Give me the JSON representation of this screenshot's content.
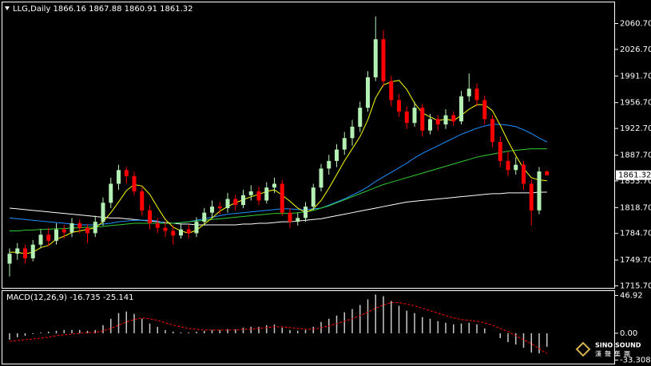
{
  "chart_data": [
    {
      "type": "candlestick",
      "title": "LLG,Daily  1866.16 1867.88 1860.91 1861.32",
      "up_color": "#b4f0b4",
      "down_color": "#ff0000",
      "open": [
        1745,
        1758,
        1765,
        1752,
        1770,
        1783,
        1775,
        1790,
        1786,
        1798,
        1792,
        1785,
        1800,
        1825,
        1850,
        1868,
        1860,
        1840,
        1815,
        1798,
        1792,
        1788,
        1782,
        1790,
        1785,
        1800,
        1812,
        1820,
        1818,
        1830,
        1822,
        1835,
        1840,
        1828,
        1845,
        1850,
        1812,
        1800,
        1805,
        1820,
        1845,
        1870,
        1880,
        1895,
        1910,
        1925,
        1950,
        1990,
        2040,
        1985,
        1960,
        1945,
        1930,
        1950,
        1920,
        1935,
        1928,
        1940,
        1932,
        1965,
        1975,
        1960,
        1935,
        1905,
        1880,
        1868,
        1875,
        1850,
        1815,
        1866.16
      ],
      "high": [
        1765,
        1772,
        1770,
        1776,
        1790,
        1792,
        1798,
        1796,
        1805,
        1803,
        1797,
        1808,
        1832,
        1858,
        1875,
        1872,
        1866,
        1845,
        1822,
        1805,
        1800,
        1795,
        1798,
        1796,
        1806,
        1818,
        1828,
        1826,
        1838,
        1835,
        1842,
        1848,
        1846,
        1852,
        1858,
        1855,
        1818,
        1812,
        1826,
        1850,
        1876,
        1888,
        1902,
        1918,
        1934,
        1958,
        1998,
        2070,
        2052,
        1992,
        1968,
        1952,
        1958,
        1955,
        1942,
        1940,
        1948,
        1945,
        1972,
        1995,
        1982,
        1966,
        1940,
        1912,
        1892,
        1885,
        1880,
        1856,
        1872,
        1867.88
      ],
      "low": [
        1728,
        1750,
        1745,
        1748,
        1765,
        1768,
        1770,
        1778,
        1780,
        1785,
        1772,
        1780,
        1795,
        1818,
        1842,
        1850,
        1835,
        1808,
        1790,
        1785,
        1780,
        1770,
        1778,
        1778,
        1780,
        1795,
        1805,
        1810,
        1812,
        1815,
        1818,
        1828,
        1822,
        1824,
        1838,
        1808,
        1792,
        1795,
        1800,
        1815,
        1840,
        1862,
        1872,
        1888,
        1900,
        1918,
        1945,
        1985,
        1978,
        1952,
        1938,
        1922,
        1925,
        1912,
        1915,
        1920,
        1922,
        1926,
        1928,
        1958,
        1952,
        1928,
        1898,
        1872,
        1860,
        1862,
        1842,
        1795,
        1810,
        1860.91
      ],
      "close": [
        1758,
        1765,
        1752,
        1770,
        1783,
        1775,
        1790,
        1786,
        1798,
        1792,
        1785,
        1800,
        1825,
        1850,
        1868,
        1860,
        1840,
        1815,
        1798,
        1792,
        1788,
        1782,
        1790,
        1785,
        1800,
        1812,
        1820,
        1818,
        1830,
        1822,
        1835,
        1840,
        1828,
        1845,
        1850,
        1812,
        1800,
        1805,
        1820,
        1845,
        1870,
        1880,
        1895,
        1910,
        1925,
        1950,
        1990,
        2040,
        1985,
        1960,
        1945,
        1930,
        1950,
        1920,
        1935,
        1928,
        1940,
        1932,
        1965,
        1975,
        1960,
        1935,
        1905,
        1880,
        1868,
        1875,
        1850,
        1815,
        1866.16,
        1861.32
      ],
      "lines": [
        {
          "color": "#ffffff",
          "values": [
            1818,
            1817,
            1816,
            1815,
            1814,
            1813,
            1812,
            1811,
            1810,
            1809,
            1808,
            1807,
            1806,
            1805,
            1805,
            1804,
            1803,
            1802,
            1801,
            1800,
            1799,
            1798,
            1797,
            1797,
            1796,
            1796,
            1796,
            1796,
            1796,
            1796,
            1797,
            1797,
            1798,
            1798,
            1799,
            1800,
            1800,
            1801,
            1802,
            1803,
            1804,
            1806,
            1808,
            1810,
            1812,
            1814,
            1816,
            1818,
            1820,
            1822,
            1824,
            1826,
            1827,
            1828,
            1829,
            1830,
            1831,
            1832,
            1833,
            1834,
            1835,
            1836,
            1837,
            1837,
            1838,
            1838,
            1838,
            1838,
            1839,
            1839
          ]
        },
        {
          "color": "#1e90ff",
          "values": [
            1805,
            1804,
            1803,
            1802,
            1801,
            1800,
            1799,
            1798,
            1797,
            1796,
            1796,
            1796,
            1797,
            1798,
            1800,
            1801,
            1802,
            1802,
            1802,
            1801,
            1798,
            1798,
            1799,
            1800,
            1802,
            1804,
            1806,
            1808,
            1810,
            1811,
            1812,
            1813,
            1814,
            1815,
            1816,
            1817,
            1817,
            1816,
            1816,
            1817,
            1818,
            1822,
            1826,
            1830,
            1835,
            1840,
            1846,
            1853,
            1859,
            1865,
            1871,
            1877,
            1884,
            1890,
            1895,
            1900,
            1905,
            1910,
            1915,
            1919,
            1923,
            1926,
            1928,
            1928,
            1927,
            1925,
            1921,
            1916,
            1910,
            1905
          ]
        },
        {
          "color": "#32cd32",
          "values": [
            1788,
            1788,
            1789,
            1789,
            1790,
            1790,
            1791,
            1791,
            1792,
            1792,
            1793,
            1793,
            1794,
            1795,
            1796,
            1797,
            1798,
            1798,
            1798,
            1798,
            1798,
            1798,
            1799,
            1800,
            1801,
            1802,
            1803,
            1804,
            1805,
            1806,
            1807,
            1808,
            1809,
            1810,
            1811,
            1811,
            1811,
            1812,
            1813,
            1815,
            1818,
            1821,
            1825,
            1829,
            1833,
            1837,
            1841,
            1845,
            1849,
            1852,
            1855,
            1858,
            1861,
            1864,
            1867,
            1870,
            1873,
            1876,
            1879,
            1882,
            1885,
            1887,
            1889,
            1891,
            1893,
            1894,
            1895,
            1896,
            1896,
            1896
          ]
        },
        {
          "color": "#ffff00",
          "values": [
            1760,
            1760,
            1758,
            1760,
            1766,
            1769,
            1777,
            1781,
            1786,
            1788,
            1790,
            1792,
            1800,
            1812,
            1826,
            1841,
            1849,
            1847,
            1836,
            1819,
            1803,
            1793,
            1788,
            1785,
            1789,
            1797,
            1805,
            1814,
            1820,
            1825,
            1829,
            1833,
            1836,
            1840,
            1842,
            1835,
            1827,
            1818,
            1812,
            1817,
            1828,
            1844,
            1862,
            1880,
            1896,
            1912,
            1934,
            1963,
            1980,
            1984,
            1986,
            1974,
            1956,
            1943,
            1938,
            1933,
            1935,
            1933,
            1940,
            1948,
            1954,
            1954,
            1946,
            1927,
            1906,
            1887,
            1870,
            1858,
            1855,
            1854
          ]
        }
      ],
      "ylim": [
        1712.6,
        2089
      ],
      "yticks": [
        {
          "value": 2060.7,
          "label": "2060.70"
        },
        {
          "value": 2026.7,
          "label": "2026.70"
        },
        {
          "value": 1991.7,
          "label": "1991.70"
        },
        {
          "value": 1956.7,
          "label": "1956.70"
        },
        {
          "value": 1922.7,
          "label": "1922.70"
        },
        {
          "value": 1887.7,
          "label": "1887.70"
        },
        {
          "value": 1853.7,
          "label": "1853.70"
        },
        {
          "value": 1818.7,
          "label": "1818.70"
        },
        {
          "value": 1784.7,
          "label": "1784.70"
        },
        {
          "value": 1749.7,
          "label": "1749.70"
        },
        {
          "value": 1715.7,
          "label": "1715.70"
        }
      ]
    },
    {
      "type": "bar",
      "title": "MACD(12,26,9) -16.735 -25.141",
      "color": "#c8c8c8",
      "values": [
        -8,
        -5,
        -3,
        -1,
        1,
        2,
        3,
        4,
        4,
        4,
        3,
        4,
        10,
        18,
        25,
        27,
        24,
        18,
        12,
        8,
        4,
        2,
        1,
        1,
        2,
        3,
        4,
        4,
        5,
        5,
        7,
        8,
        8,
        10,
        11,
        7,
        4,
        3,
        4,
        8,
        14,
        18,
        22,
        26,
        30,
        35,
        42,
        48,
        46,
        40,
        34,
        28,
        25,
        20,
        18,
        15,
        13,
        11,
        12,
        13,
        11,
        6,
        0,
        -6,
        -11,
        -14,
        -18,
        -24,
        -25,
        -16.735
      ],
      "signal": {
        "color": "#ff0000",
        "values": [
          -10,
          -9,
          -8,
          -7,
          -6,
          -5,
          -3,
          -2,
          -1,
          0,
          1,
          1,
          3,
          6,
          10,
          14,
          17,
          19,
          18,
          16,
          13,
          10,
          8,
          6,
          5,
          4,
          4,
          4,
          4,
          4,
          5,
          5,
          6,
          7,
          8,
          8,
          7,
          6,
          5,
          5,
          7,
          9,
          12,
          15,
          18,
          22,
          26,
          31,
          35,
          38,
          38,
          36,
          34,
          31,
          28,
          25,
          22,
          19,
          17,
          16,
          15,
          13,
          10,
          6,
          2,
          -3,
          -8,
          -13,
          -19,
          -25.141
        ]
      },
      "ylim": [
        -38.1,
        52.8
      ],
      "yticks": [
        46.92,
        {
          "value": 0,
          "label": "0.00"
        },
        -33.308
      ]
    }
  ],
  "watermark": {
    "brand": "SINO SOUND",
    "name": "漢聲集團"
  }
}
